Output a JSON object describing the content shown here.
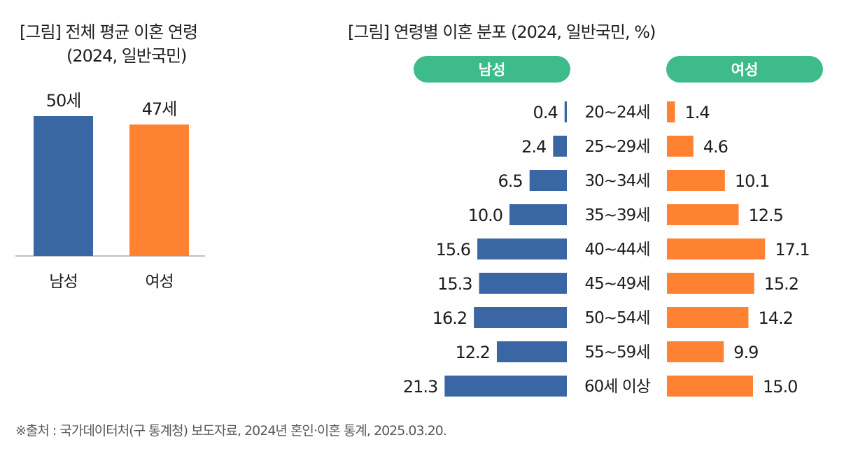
{
  "left_title_line1": "[그림] 전체 평균 이혼 연령",
  "left_title_line2": "(2024, 일반국민)",
  "right_title": "[그림] 연령별 이혼 분포 (2024, 일반국민, %)",
  "source": "※출처 : 국가데이터처(구 통계청) 보도자료, 2024년 혼인·이혼 통계, 2025.03.20.",
  "colors": {
    "male": "#3a66a3",
    "female": "#fe8232",
    "pill": "#3dbb8a"
  },
  "chart_data": [
    {
      "type": "bar",
      "title": "[그림] 전체 평균 이혼 연령 (2024, 일반국민)",
      "categories": [
        "남성",
        "여성"
      ],
      "values": [
        50,
        47
      ],
      "value_labels": [
        "50세",
        "47세"
      ],
      "unit": "세",
      "ylim": [
        0,
        50
      ],
      "xlabel": "",
      "ylabel": ""
    },
    {
      "type": "bar",
      "orientation": "horizontal-butterfly",
      "title": "[그림] 연령별 이혼 분포 (2024, 일반국민, %)",
      "categories": [
        "20~24세",
        "25~29세",
        "30~34세",
        "35~39세",
        "40~44세",
        "45~49세",
        "50~54세",
        "55~59세",
        "60세 이상"
      ],
      "series": [
        {
          "name": "남성",
          "values": [
            0.4,
            2.4,
            6.5,
            10.0,
            15.6,
            15.3,
            16.2,
            12.2,
            21.3
          ],
          "labels": [
            "0.4",
            "2.4",
            "6.5",
            "10.0",
            "15.6",
            "15.3",
            "16.2",
            "12.2",
            "21.3"
          ]
        },
        {
          "name": "여성",
          "values": [
            1.4,
            4.6,
            10.1,
            12.5,
            17.1,
            15.2,
            14.2,
            9.9,
            15.0
          ],
          "labels": [
            "1.4",
            "4.6",
            "10.1",
            "12.5",
            "17.1",
            "15.2",
            "14.2",
            "9.9",
            "15.0"
          ]
        }
      ],
      "unit": "%"
    }
  ]
}
